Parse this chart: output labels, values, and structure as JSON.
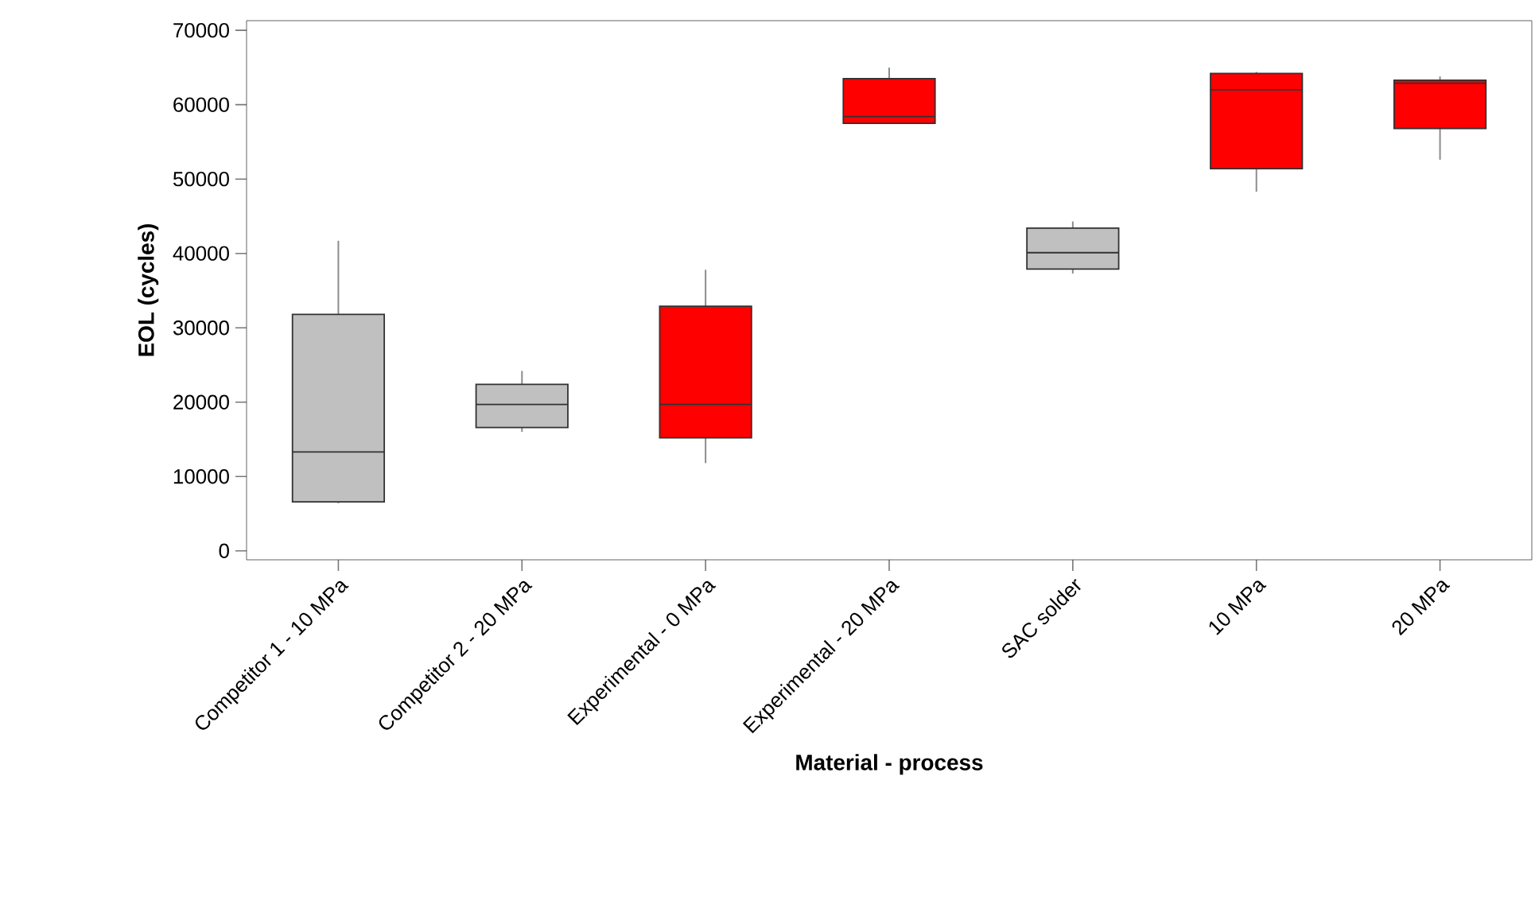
{
  "chart_data": {
    "type": "box",
    "xlabel": "Material - process",
    "ylabel": "EOL (cycles)",
    "categories": [
      "Competitor 1 - 10 MPa",
      "Competitor 2 - 20 MPa",
      "Experimental - 0 MPa",
      "Experimental - 20 MPa",
      "SAC solder",
      "10 MPa",
      "20 MPa"
    ],
    "boxes": [
      {
        "low": 6400,
        "q1": 6600,
        "median": 13300,
        "q3": 31800,
        "high": 41700
      },
      {
        "low": 16000,
        "q1": 16600,
        "median": 19700,
        "q3": 22400,
        "high": 24200
      },
      {
        "low": 11800,
        "q1": 15200,
        "median": 19700,
        "q3": 32900,
        "high": 37800
      },
      {
        "low": 57500,
        "q1": 57500,
        "median": 58400,
        "q3": 63500,
        "high": 65000
      },
      {
        "low": 37300,
        "q1": 37900,
        "median": 40100,
        "q3": 43400,
        "high": 44300
      },
      {
        "low": 48300,
        "q1": 51400,
        "median": 62000,
        "q3": 64200,
        "high": 64400
      },
      {
        "low": 52600,
        "q1": 56800,
        "median": 62900,
        "q3": 63300,
        "high": 63800
      }
    ],
    "colors": [
      "#c0c0c0",
      "#c0c0c0",
      "#ff0000",
      "#ff0000",
      "#c0c0c0",
      "#ff0000",
      "#ff0000"
    ],
    "ylim": [
      -1200,
      71300
    ],
    "yticks": [
      0,
      10000,
      20000,
      30000,
      40000,
      50000,
      60000,
      70000
    ]
  }
}
